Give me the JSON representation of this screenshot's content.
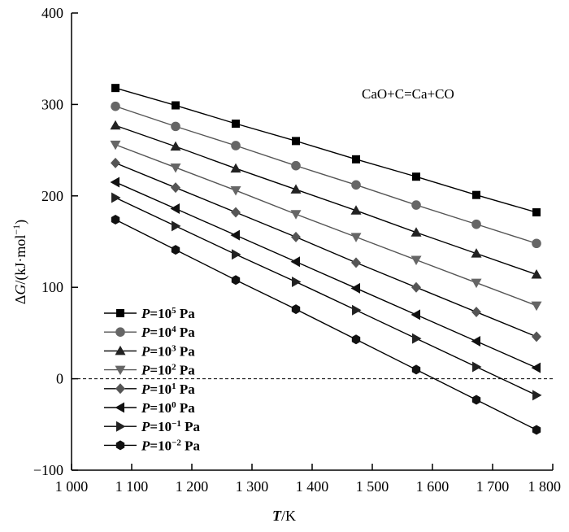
{
  "chart_data": {
    "type": "line",
    "xlabel_italic": "T",
    "xlabel_unit": "/K",
    "ylabel_delta": "Δ",
    "ylabel_italic": "G",
    "ylabel_unit": "/(kJ·mol",
    "ylabel_sup": "−1",
    "ylabel_close": ")",
    "annotation": "CaO+C=Ca+CO",
    "xlim": [
      1000,
      1800
    ],
    "ylim": [
      -100,
      400
    ],
    "xticks": [
      1000,
      1100,
      1200,
      1300,
      1400,
      1500,
      1600,
      1700,
      1800
    ],
    "xtick_labels": [
      "1 000",
      "1 100",
      "1 200",
      "1 300",
      "1 400",
      "1 500",
      "1 600",
      "1 700",
      "1 800"
    ],
    "yticks": [
      -100,
      0,
      100,
      200,
      300,
      400
    ],
    "ytick_labels": [
      "−100",
      "0",
      "100",
      "200",
      "300",
      "400"
    ],
    "reference_line": {
      "y": 0,
      "style": "dashed"
    },
    "x": [
      1073,
      1173,
      1273,
      1373,
      1473,
      1573,
      1673,
      1773
    ],
    "series": [
      {
        "name_prefix": "P",
        "name_base": "=10",
        "name_exp": "5",
        "name_unit": " Pa",
        "marker": "square",
        "line_color": "#000000",
        "marker_color": "#000000",
        "values": [
          318,
          299,
          279,
          260,
          240,
          221,
          201,
          182
        ]
      },
      {
        "name_prefix": "P",
        "name_base": "=10",
        "name_exp": "4",
        "name_unit": " Pa",
        "marker": "circle",
        "line_color": "#555555",
        "marker_color": "#666666",
        "values": [
          298,
          276,
          255,
          233,
          212,
          190,
          169,
          148
        ]
      },
      {
        "name_prefix": "P",
        "name_base": "=10",
        "name_exp": "3",
        "name_unit": " Pa",
        "marker": "triangle-up",
        "line_color": "#000000",
        "marker_color": "#222222",
        "values": [
          277,
          254,
          230,
          207,
          184,
          160,
          137,
          114
        ]
      },
      {
        "name_prefix": "P",
        "name_base": "=10",
        "name_exp": "2",
        "name_unit": " Pa",
        "marker": "triangle-down",
        "line_color": "#555555",
        "marker_color": "#666666",
        "values": [
          256,
          231,
          206,
          180,
          155,
          130,
          105,
          80
        ]
      },
      {
        "name_prefix": "P",
        "name_base": "=10",
        "name_exp": "1",
        "name_unit": " Pa",
        "marker": "diamond",
        "line_color": "#000000",
        "marker_color": "#555555",
        "values": [
          236,
          209,
          182,
          155,
          127,
          100,
          73,
          46
        ]
      },
      {
        "name_prefix": "P",
        "name_base": "=10",
        "name_exp": "0",
        "name_unit": " Pa",
        "marker": "triangle-left",
        "line_color": "#000000",
        "marker_color": "#111111",
        "values": [
          215,
          186,
          157,
          128,
          99,
          70,
          41,
          12
        ]
      },
      {
        "name_prefix": "P",
        "name_base": "=10",
        "name_exp": "−1",
        "name_unit": " Pa",
        "marker": "triangle-right",
        "line_color": "#000000",
        "marker_color": "#222222",
        "values": [
          198,
          167,
          136,
          106,
          75,
          44,
          13,
          -18
        ]
      },
      {
        "name_prefix": "P",
        "name_base": "=10",
        "name_exp": "−2",
        "name_unit": " Pa",
        "marker": "hexagon",
        "line_color": "#000000",
        "marker_color": "#111111",
        "values": [
          174,
          141,
          108,
          76,
          43,
          10,
          -23,
          -56
        ]
      }
    ],
    "legend_position": "bottom-left"
  }
}
